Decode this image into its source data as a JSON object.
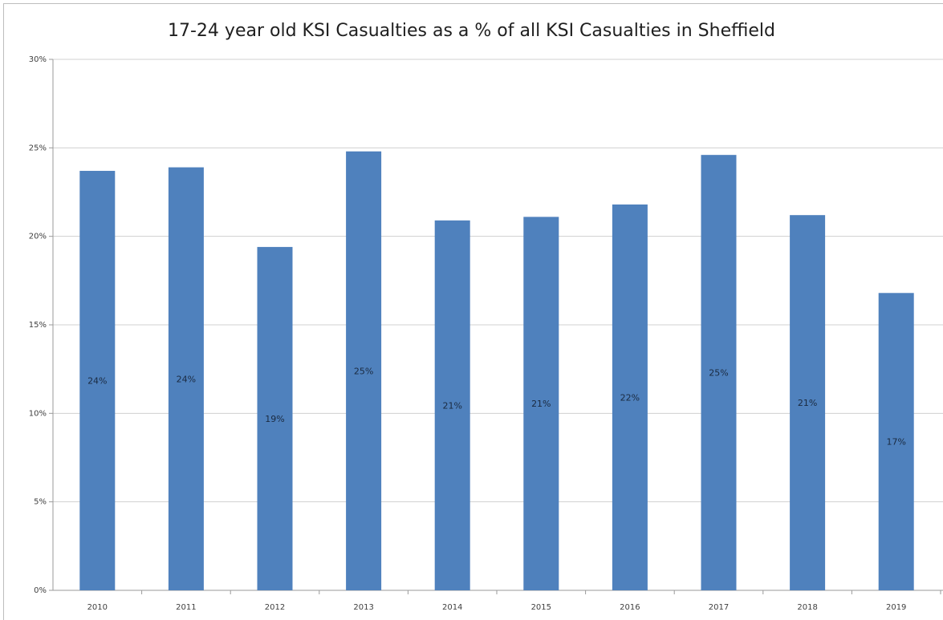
{
  "chart_data": {
    "type": "bar",
    "title": "17-24 year old KSI Casualties as a % of all KSI Casualties in Sheffield",
    "xlabel": "",
    "ylabel": "",
    "categories": [
      "2010",
      "2011",
      "2012",
      "2013",
      "2014",
      "2015",
      "2016",
      "2017",
      "2018",
      "2019"
    ],
    "values": [
      23.7,
      23.9,
      19.4,
      24.8,
      20.9,
      21.1,
      21.8,
      24.6,
      21.2,
      16.8
    ],
    "data_labels": [
      "24%",
      "24%",
      "19%",
      "25%",
      "21%",
      "21%",
      "22%",
      "25%",
      "21%",
      "17%"
    ],
    "yticks": [
      "0%",
      "5%",
      "10%",
      "15%",
      "20%",
      "25%",
      "30%"
    ],
    "ylim": [
      0,
      30
    ],
    "grid": true,
    "legend": "none",
    "bar_color": "#4f81bd"
  }
}
